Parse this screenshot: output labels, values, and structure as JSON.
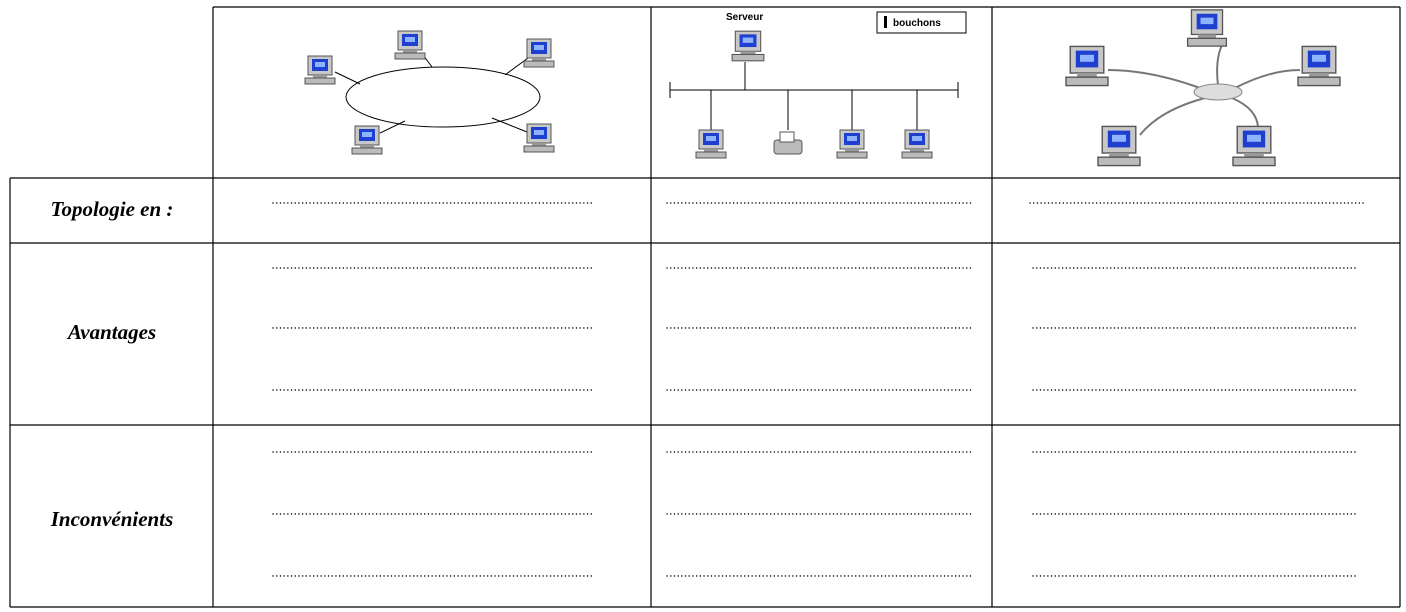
{
  "diagrams": {
    "bus": {
      "server_label": "Serveur",
      "legend": "bouchons"
    }
  },
  "rows": [
    {
      "label": "Topologie en :"
    },
    {
      "label": "Avantages"
    },
    {
      "label": "Inconvénients"
    }
  ]
}
